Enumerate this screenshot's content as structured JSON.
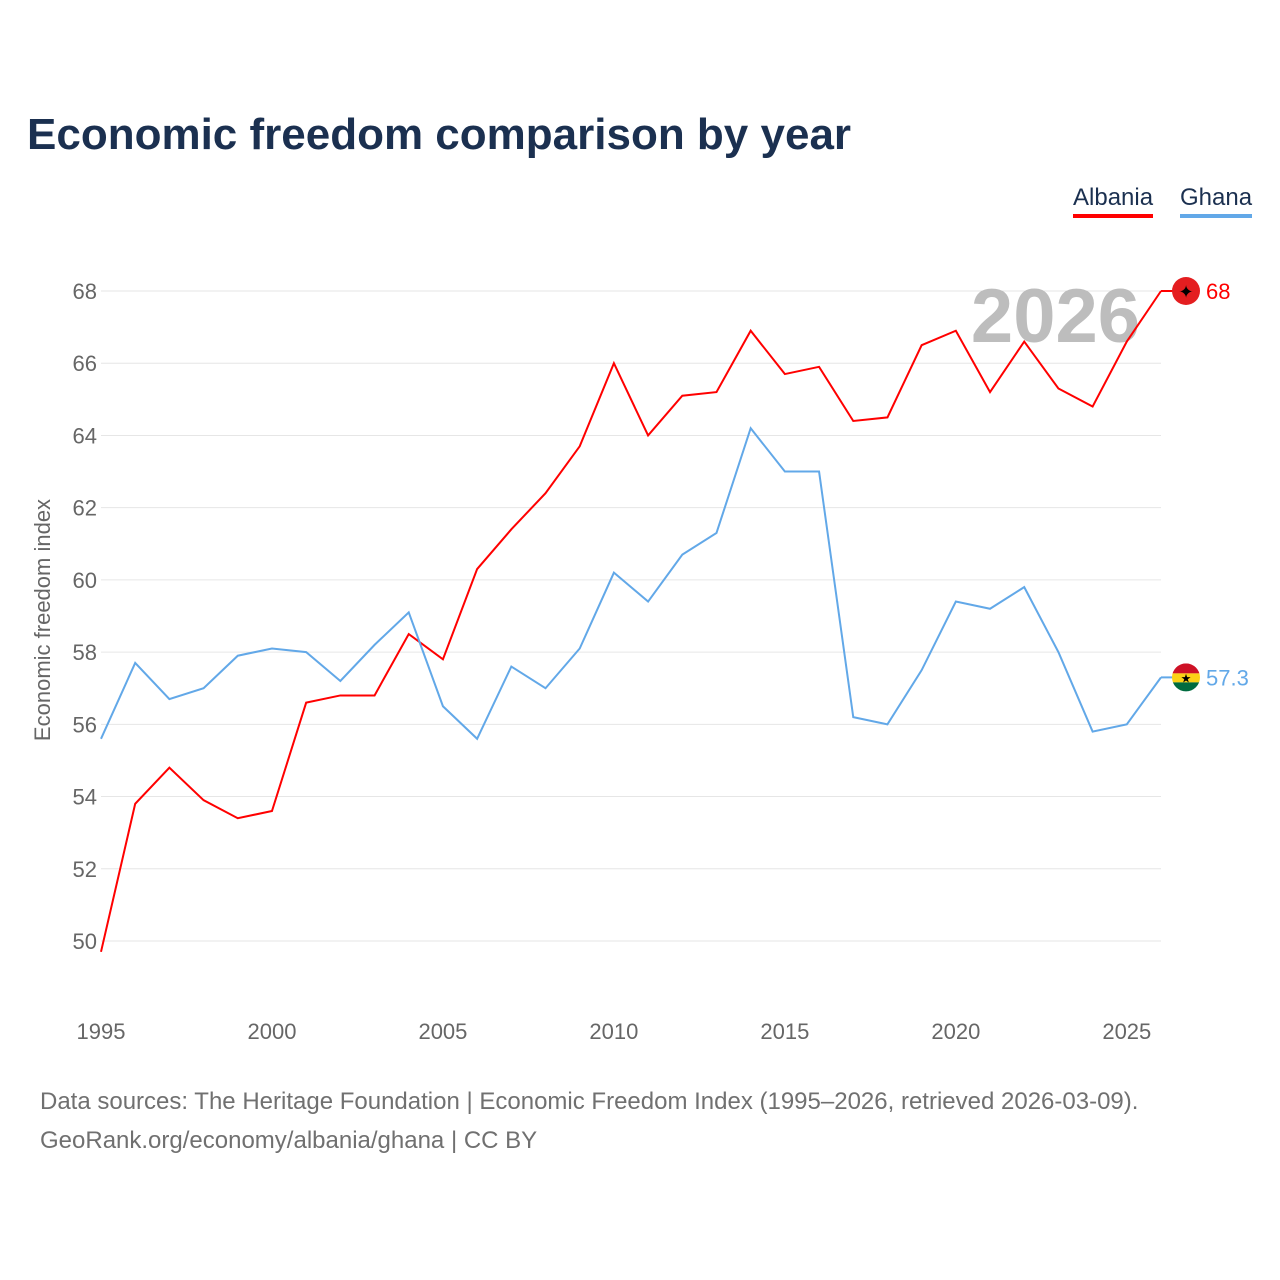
{
  "chart_data": {
    "type": "line",
    "title": "Economic freedom comparison by year",
    "xlabel": "",
    "ylabel": "Economic freedom index",
    "xlim": [
      1995,
      2026
    ],
    "ylim": [
      48,
      69
    ],
    "yticks": [
      50,
      52,
      54,
      56,
      58,
      60,
      62,
      64,
      66,
      68
    ],
    "xticks": [
      1995,
      2000,
      2005,
      2010,
      2015,
      2020,
      2025
    ],
    "grid": true,
    "legend_position": "top-right",
    "current_year_label": "2026",
    "x": [
      1995,
      1996,
      1997,
      1998,
      1999,
      2000,
      2001,
      2002,
      2003,
      2004,
      2005,
      2006,
      2007,
      2008,
      2009,
      2010,
      2011,
      2012,
      2013,
      2014,
      2015,
      2016,
      2017,
      2018,
      2019,
      2020,
      2021,
      2022,
      2023,
      2024,
      2025,
      2026
    ],
    "series": [
      {
        "name": "Albania",
        "color": "#ff0000",
        "end_label": "68",
        "values": [
          49.7,
          53.8,
          54.8,
          53.9,
          53.4,
          53.6,
          56.6,
          56.8,
          56.8,
          58.5,
          57.8,
          60.3,
          61.4,
          62.4,
          63.7,
          66.0,
          64.0,
          65.1,
          65.2,
          66.9,
          65.7,
          65.9,
          64.4,
          64.5,
          66.5,
          66.9,
          65.2,
          66.6,
          65.3,
          64.8,
          66.6,
          68.0
        ]
      },
      {
        "name": "Ghana",
        "color": "#62a8e8",
        "end_label": "57.3",
        "values": [
          55.6,
          57.7,
          56.7,
          57.0,
          57.9,
          58.1,
          58.0,
          57.2,
          58.2,
          59.1,
          56.5,
          55.6,
          57.6,
          57.0,
          58.1,
          60.2,
          59.4,
          60.7,
          61.3,
          64.2,
          63.0,
          63.0,
          56.2,
          56.0,
          57.5,
          59.4,
          59.2,
          59.8,
          58.0,
          55.8,
          56.0,
          57.3
        ]
      }
    ]
  },
  "footer": {
    "source": "Data sources: The Heritage Foundation | Economic Freedom Index (1995–2026, retrieved 2026-03-09).",
    "url": "GeoRank.org/economy/albania/ghana | CC BY"
  }
}
